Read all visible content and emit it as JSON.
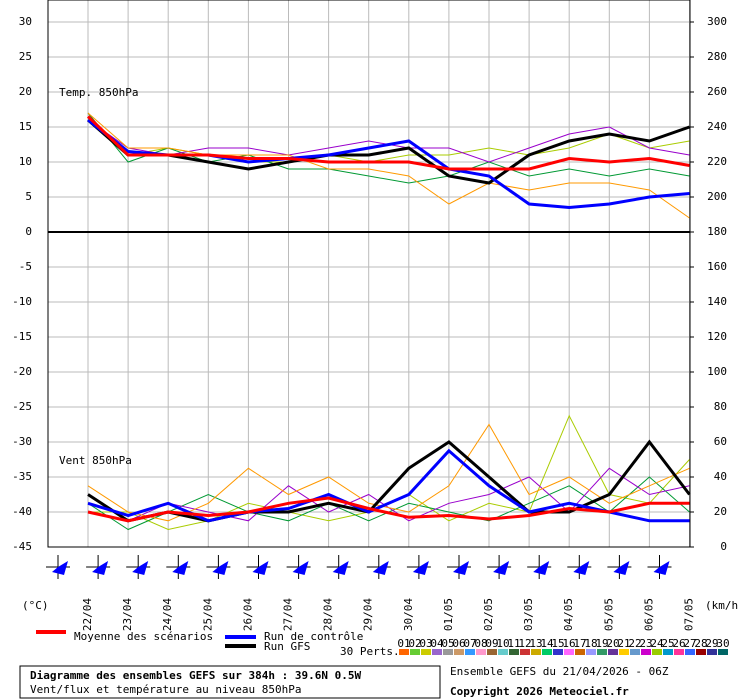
{
  "chart_data": {
    "type": "line",
    "title": "Diagramme des ensembles GEFS sur 384h : 39.6N 0.5W",
    "subtitle": "Vent/flux et température au niveau 850hPa",
    "run_info": "Ensemble GEFS du 21/04/2026 - 06Z",
    "copyright": "Copyright 2026 Meteociel.fr",
    "annotations": [
      "Temp. 850hPa",
      "Vent 850hPa"
    ],
    "ylabel": "(°C)",
    "y2label": "(km/h)",
    "categories": [
      "22/04",
      "23/04",
      "24/04",
      "25/04",
      "26/04",
      "27/04",
      "28/04",
      "29/04",
      "30/04",
      "01/05",
      "02/05",
      "03/05",
      "04/05",
      "05/05",
      "06/05",
      "07/05"
    ],
    "ylim": [
      -45,
      30
    ],
    "yticks": [
      -45,
      -40,
      -35,
      -30,
      -25,
      -20,
      -15,
      -10,
      -5,
      0,
      5,
      10,
      15,
      20,
      25,
      30
    ],
    "y2lim": [
      0,
      300
    ],
    "y2ticks": [
      0,
      20,
      40,
      60,
      80,
      100,
      120,
      140,
      160,
      180,
      200,
      220,
      240,
      260,
      280,
      300
    ],
    "grid": true,
    "series": [
      {
        "name": "Moyenne des scénarios",
        "color": "#ff0000",
        "values": [
          16.5,
          11,
          11,
          11,
          10.5,
          10.5,
          10,
          10,
          10,
          9,
          9,
          9,
          10.5,
          10,
          10.5,
          9.5
        ]
      },
      {
        "name": "Run de contrôle",
        "color": "#0000ff",
        "values": [
          16,
          11.5,
          11,
          11,
          10,
          10.5,
          11,
          12,
          13,
          9,
          8,
          4,
          3.5,
          4,
          5,
          5.5
        ]
      },
      {
        "name": "Run GFS",
        "color": "#000000",
        "values": [
          16,
          11,
          11,
          10,
          9,
          10,
          11,
          11,
          12,
          8,
          7,
          11,
          13,
          14,
          13,
          15
        ]
      },
      {
        "color": "#ff9900",
        "values": [
          17,
          12,
          12,
          11,
          11,
          11,
          9,
          9,
          8,
          4,
          7,
          6,
          7,
          7,
          6,
          2
        ]
      },
      {
        "color": "#9900cc",
        "values": [
          16,
          12,
          11,
          12,
          12,
          11,
          12,
          13,
          12,
          12,
          10,
          12,
          14,
          15,
          12,
          11
        ]
      },
      {
        "color": "#009933",
        "values": [
          17,
          10,
          12,
          10,
          11,
          9,
          9,
          8,
          7,
          8,
          10,
          8,
          9,
          8,
          9,
          8
        ]
      },
      {
        "color": "#aacc00",
        "values": [
          16,
          11,
          12,
          11,
          10,
          10,
          11,
          10,
          11,
          11,
          12,
          11,
          12,
          14,
          12,
          13
        ]
      },
      {
        "color": "#ff0000",
        "axis": "y2",
        "values": [
          20,
          15,
          20,
          18,
          20,
          25,
          28,
          22,
          17,
          18,
          16,
          18,
          22,
          20,
          25,
          25
        ]
      },
      {
        "color": "#0000ff",
        "axis": "y2",
        "values": [
          25,
          18,
          25,
          15,
          20,
          22,
          30,
          20,
          30,
          55,
          35,
          20,
          25,
          20,
          15,
          15
        ]
      },
      {
        "color": "#000000",
        "axis": "y2",
        "values": [
          30,
          15,
          20,
          15,
          20,
          20,
          25,
          20,
          45,
          60,
          40,
          20,
          20,
          30,
          60,
          30
        ]
      },
      {
        "color": "#ff9900",
        "axis": "y2",
        "values": [
          35,
          20,
          15,
          25,
          45,
          30,
          40,
          25,
          20,
          35,
          70,
          30,
          40,
          25,
          35,
          45
        ]
      },
      {
        "color": "#9900cc",
        "axis": "y2",
        "values": [
          30,
          15,
          25,
          20,
          15,
          35,
          20,
          30,
          15,
          25,
          30,
          40,
          20,
          45,
          30,
          35
        ]
      },
      {
        "color": "#009933",
        "axis": "y2",
        "values": [
          25,
          10,
          20,
          30,
          20,
          15,
          25,
          15,
          25,
          20,
          15,
          25,
          35,
          20,
          40,
          20
        ]
      },
      {
        "color": "#aacc00",
        "axis": "y2",
        "values": [
          20,
          20,
          10,
          15,
          25,
          20,
          15,
          20,
          30,
          15,
          25,
          20,
          75,
          30,
          25,
          50
        ]
      }
    ],
    "perturbations": {
      "label": "30 Perts.",
      "codes": [
        "01",
        "02",
        "03",
        "04",
        "05",
        "06",
        "07",
        "08",
        "09",
        "10",
        "11",
        "12",
        "13",
        "14",
        "15",
        "16",
        "17",
        "18",
        "19",
        "20",
        "21",
        "22",
        "23",
        "24",
        "25",
        "26",
        "27",
        "28",
        "29",
        "30"
      ],
      "colors": [
        "#ff6600",
        "#66cc33",
        "#cccc00",
        "#9966cc",
        "#999999",
        "#cc9966",
        "#3399ff",
        "#ff99cc",
        "#996633",
        "#66cccc",
        "#336633",
        "#cc3333",
        "#ccaa00",
        "#00cc66",
        "#3333cc",
        "#ff66ff",
        "#cc6600",
        "#9999ff",
        "#339966",
        "#663399",
        "#ffcc00",
        "#6699cc",
        "#cc00cc",
        "#99cc00",
        "#0099cc",
        "#ff3399",
        "#3366ff",
        "#990000",
        "#333399",
        "#006666"
      ]
    }
  }
}
